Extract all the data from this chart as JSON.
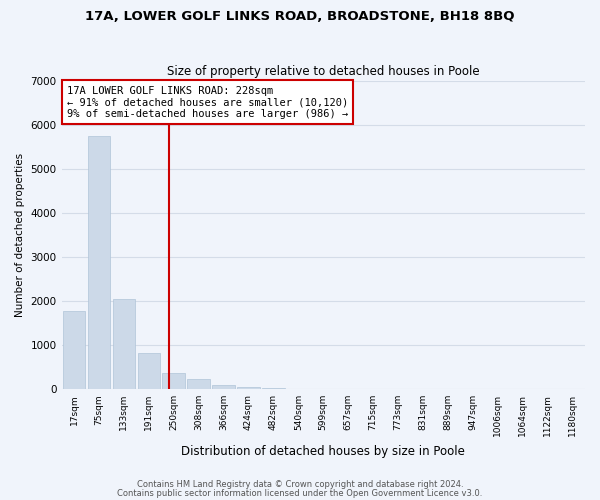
{
  "title": "17A, LOWER GOLF LINKS ROAD, BROADSTONE, BH18 8BQ",
  "subtitle": "Size of property relative to detached houses in Poole",
  "xlabel": "Distribution of detached houses by size in Poole",
  "ylabel": "Number of detached properties",
  "footnote1": "Contains HM Land Registry data © Crown copyright and database right 2024.",
  "footnote2": "Contains public sector information licensed under the Open Government Licence v3.0.",
  "bar_labels": [
    "17sqm",
    "75sqm",
    "133sqm",
    "191sqm",
    "250sqm",
    "308sqm",
    "366sqm",
    "424sqm",
    "482sqm",
    "540sqm",
    "599sqm",
    "657sqm",
    "715sqm",
    "773sqm",
    "831sqm",
    "889sqm",
    "947sqm",
    "1006sqm",
    "1064sqm",
    "1122sqm",
    "1180sqm"
  ],
  "bar_values": [
    1780,
    5750,
    2060,
    820,
    370,
    220,
    100,
    55,
    30,
    15,
    8,
    3,
    0,
    0,
    0,
    0,
    0,
    0,
    0,
    0,
    0
  ],
  "bar_color": "#ccd9e8",
  "bar_edge_color": "#b0c4d8",
  "vline_color": "#cc0000",
  "annotation_title": "17A LOWER GOLF LINKS ROAD: 228sqm",
  "annotation_line1": "← 91% of detached houses are smaller (10,120)",
  "annotation_line2": "9% of semi-detached houses are larger (986) →",
  "annotation_box_color": "#ffffff",
  "annotation_box_edge": "#cc0000",
  "ylim": [
    0,
    7000
  ],
  "yticks": [
    0,
    1000,
    2000,
    3000,
    4000,
    5000,
    6000,
    7000
  ],
  "grid_color": "#d4dce8",
  "background_color": "#f0f4fb"
}
